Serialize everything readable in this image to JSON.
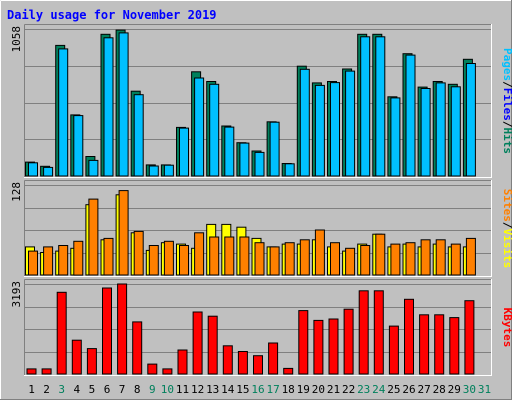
{
  "chart_data": {
    "type": "bar",
    "title": "Daily usage for November 2019",
    "days": [
      "1",
      "2",
      "3",
      "4",
      "5",
      "6",
      "7",
      "8",
      "9",
      "10",
      "11",
      "12",
      "13",
      "14",
      "15",
      "16",
      "17",
      "18",
      "19",
      "20",
      "21",
      "22",
      "23",
      "24",
      "25",
      "26",
      "27",
      "28",
      "29",
      "30",
      "31"
    ],
    "weekend_days": [
      3,
      9,
      10,
      16,
      17,
      23,
      24,
      30,
      31
    ],
    "colors": {
      "hits": "#00805c",
      "files": "#0000ff",
      "pages": "#00c0ff",
      "visits": "#ffff00",
      "sites": "#ff8000",
      "kbytes": "#ff0000",
      "title": "#0000ff",
      "weekday_label": "#000000",
      "weekend_label": "#00805c",
      "panel_bg": "#c0c0c0"
    },
    "panels": [
      {
        "id": "requests",
        "max_label": "1058",
        "ymax": 1058,
        "side_label": [
          "Pages",
          "Files",
          "Hits"
        ],
        "series": [
          {
            "name": "Hits",
            "values": [
              100,
              70,
              940,
              440,
              140,
              1020,
              1050,
              610,
              80,
              80,
              350,
              750,
              680,
              360,
              240,
              180,
              390,
              90,
              790,
              670,
              680,
              770,
              1020,
              1020,
              570,
              880,
              640,
              680,
              660,
              840,
              0
            ]
          },
          {
            "name": "Pages",
            "values": [
              95,
              62,
              915,
              435,
              112,
              995,
              1030,
              585,
              72,
              78,
              345,
              705,
              660,
              352,
              237,
              170,
              387,
              88,
              768,
              652,
              672,
              755,
              1002,
              1002,
              562,
              870,
              630,
              670,
              642,
              810,
              0
            ]
          }
        ]
      },
      {
        "id": "visitors",
        "max_label": "128",
        "ymax": 128,
        "side_label": [
          "Sites",
          "Visits"
        ],
        "series": [
          {
            "name": "Visits",
            "values": [
              40,
              32,
              34,
              38,
              100,
              50,
              114,
              60,
              35,
              46,
              44,
              38,
              72,
              72,
              68,
              52,
              40,
              44,
              44,
              50,
              40,
              34,
              44,
              58,
              40,
              44,
              40,
              44,
              40,
              40,
              0
            ]
          },
          {
            "name": "Sites",
            "values": [
              34,
              40,
              42,
              48,
              108,
              52,
              120,
              62,
              42,
              48,
              42,
              60,
              54,
              54,
              54,
              46,
              40,
              46,
              50,
              64,
              46,
              38,
              42,
              58,
              44,
              46,
              50,
              50,
              44,
              52,
              0
            ]
          }
        ]
      },
      {
        "id": "volume",
        "max_label": "3193",
        "ymax": 3193,
        "side_label": [
          "KBytes"
        ],
        "series": [
          {
            "name": "KBytes",
            "values": [
              180,
              180,
              2900,
              1200,
              900,
              3050,
              3193,
              1850,
              350,
              180,
              850,
              2200,
              2050,
              1000,
              800,
              650,
              1100,
              200,
              2250,
              1900,
              1950,
              2300,
              2950,
              2950,
              1700,
              2650,
              2100,
              2100,
              2000,
              2600,
              0
            ]
          }
        ]
      }
    ]
  }
}
